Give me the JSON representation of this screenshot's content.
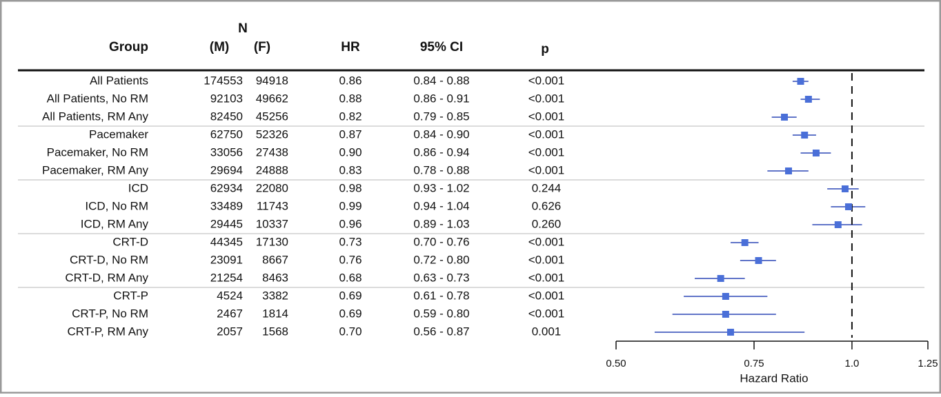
{
  "chart_data": {
    "type": "forest",
    "headers": {
      "group": "Group",
      "n": "N",
      "n_m": "(M)",
      "n_f": "(F)",
      "hr": "HR",
      "ci": "95% CI",
      "p": "p"
    },
    "categories": [
      "All Patients",
      "All Patients, No RM",
      "All Patients, RM Any",
      "Pacemaker",
      "Pacemaker, No RM",
      "Pacemaker, RM Any",
      "ICD",
      "ICD, No RM",
      "ICD, RM Any",
      "CRT-D",
      "CRT-D, No RM",
      "CRT-D, RM Any",
      "CRT-P",
      "CRT-P, No RM",
      "CRT-P, RM Any"
    ],
    "n_m": [
      174553,
      92103,
      82450,
      62750,
      33056,
      29694,
      62934,
      33489,
      29445,
      44345,
      23091,
      21254,
      4524,
      2467,
      2057
    ],
    "n_f": [
      94918,
      49662,
      45256,
      52326,
      27438,
      24888,
      22080,
      11743,
      10337,
      17130,
      8667,
      8463,
      3382,
      1814,
      1568
    ],
    "values": [
      0.86,
      0.88,
      0.82,
      0.87,
      0.9,
      0.83,
      0.98,
      0.99,
      0.96,
      0.73,
      0.76,
      0.68,
      0.69,
      0.69,
      0.7
    ],
    "value_labels": [
      "0.86",
      "0.88",
      "0.82",
      "0.87",
      "0.90",
      "0.83",
      "0.98",
      "0.99",
      "0.96",
      "0.73",
      "0.76",
      "0.68",
      "0.69",
      "0.69",
      "0.70"
    ],
    "ci_low": [
      0.84,
      0.86,
      0.79,
      0.84,
      0.86,
      0.78,
      0.93,
      0.94,
      0.89,
      0.7,
      0.72,
      0.63,
      0.61,
      0.59,
      0.56
    ],
    "ci_high": [
      0.88,
      0.91,
      0.85,
      0.9,
      0.94,
      0.88,
      1.02,
      1.04,
      1.03,
      0.76,
      0.8,
      0.73,
      0.78,
      0.8,
      0.87
    ],
    "ci_labels": [
      "0.84 - 0.88",
      "0.86 - 0.91",
      "0.79 - 0.85",
      "0.84 - 0.90",
      "0.86 - 0.94",
      "0.78 - 0.88",
      "0.93 - 1.02",
      "0.94 - 1.04",
      "0.89 - 1.03",
      "0.70 - 0.76",
      "0.72 - 0.80",
      "0.63 - 0.73",
      "0.61 - 0.78",
      "0.59 - 0.80",
      "0.56 - 0.87"
    ],
    "p_labels": [
      "<0.001",
      "<0.001",
      "<0.001",
      "<0.001",
      "<0.001",
      "<0.001",
      "0.244",
      "0.626",
      "0.260",
      "<0.001",
      "<0.001",
      "<0.001",
      "<0.001",
      "<0.001",
      "0.001"
    ],
    "xlabel": "Hazard Ratio",
    "xlim": [
      0.5,
      1.25
    ],
    "xticks": [
      {
        "value": 0.5,
        "label": "0.50"
      },
      0.75,
      {
        "value": 1,
        "label": "1.0"
      },
      1.25
    ],
    "log_scale": true,
    "reference_line": 1,
    "marker_color": "#4a6fd8",
    "ci_color": "#2c47b5"
  }
}
